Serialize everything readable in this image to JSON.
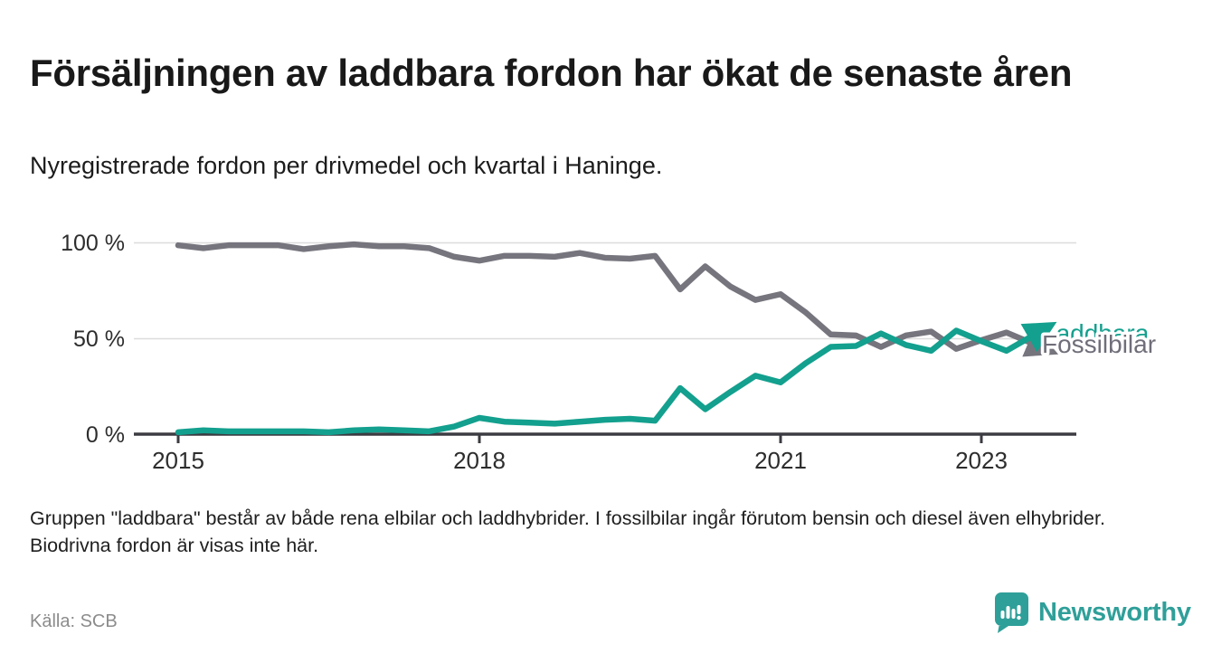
{
  "header": {
    "title": "Försäljningen av laddbara fordon har ökat de senaste åren",
    "subtitle": "Nyregistrerade fordon per drivmedel och kvartal i Haninge."
  },
  "chart_data": {
    "type": "line",
    "unit": "%",
    "ylim": [
      0,
      100
    ],
    "grid": "horizontal-only",
    "legend_position": "labels-at-line-end",
    "y_tick_labels": [
      "100 %",
      "50 %",
      "0 %"
    ],
    "y_tick_values": [
      100,
      50,
      0
    ],
    "x_ticks": [
      {
        "year": 2015,
        "label": "2015"
      },
      {
        "year": 2018,
        "label": "2018"
      },
      {
        "year": 2021,
        "label": "2021"
      },
      {
        "year": 2023,
        "label": "2023"
      }
    ],
    "categories": [
      "2015-Q1",
      "2015-Q2",
      "2015-Q3",
      "2015-Q4",
      "2016-Q1",
      "2016-Q2",
      "2016-Q3",
      "2016-Q4",
      "2017-Q1",
      "2017-Q2",
      "2017-Q3",
      "2017-Q4",
      "2018-Q1",
      "2018-Q2",
      "2018-Q3",
      "2018-Q4",
      "2019-Q1",
      "2019-Q2",
      "2019-Q3",
      "2019-Q4",
      "2020-Q1",
      "2020-Q2",
      "2020-Q3",
      "2020-Q4",
      "2021-Q1",
      "2021-Q2",
      "2021-Q3",
      "2021-Q4",
      "2022-Q1",
      "2022-Q2",
      "2022-Q3",
      "2022-Q4",
      "2023-Q1",
      "2023-Q2",
      "2023-Q3"
    ],
    "series": [
      {
        "name": "Laddbara",
        "color": "#13a08e",
        "values": [
          1,
          2,
          1.5,
          1.5,
          1.5,
          1.5,
          1,
          2,
          2.5,
          2,
          1.5,
          4,
          8.5,
          6.5,
          6,
          5.5,
          6.5,
          7.5,
          8,
          7,
          24,
          13,
          22,
          30.5,
          27,
          37,
          45.5,
          46,
          52.5,
          46.5,
          43.5,
          54,
          48.5,
          43.5,
          51
        ]
      },
      {
        "name": "Fossilbilar",
        "color": "#76757e",
        "label_color": "#6f6e79",
        "values": [
          98.5,
          97,
          98.5,
          98.5,
          98.5,
          96.5,
          98,
          99,
          98,
          98,
          97,
          92.5,
          90.5,
          93,
          93,
          92.5,
          94.5,
          92,
          91.5,
          93,
          75.5,
          87.5,
          77,
          70,
          73,
          63.5,
          52,
          51.5,
          45.5,
          51.5,
          53.5,
          44.5,
          49,
          53,
          47.5
        ]
      }
    ]
  },
  "footnote": "Gruppen \"laddbara\" består av både rena elbilar och laddhybrider. I fossilbilar ingår förutom bensin och diesel även elhybrider. Biodrivna fordon är visas inte här.",
  "source": "Källa: SCB",
  "branding": {
    "wordmark": "Newsworthy",
    "logo_icon": "newsworthy-pin-barchart-icon",
    "brand_color": "#2f9f99"
  },
  "colors": {
    "laddbara_line": "#13a08e",
    "fossilbilar_line": "#76757e",
    "axis": "#3b3b42",
    "gridline": "#dcdcdc",
    "source_text": "#8c8c8c"
  }
}
